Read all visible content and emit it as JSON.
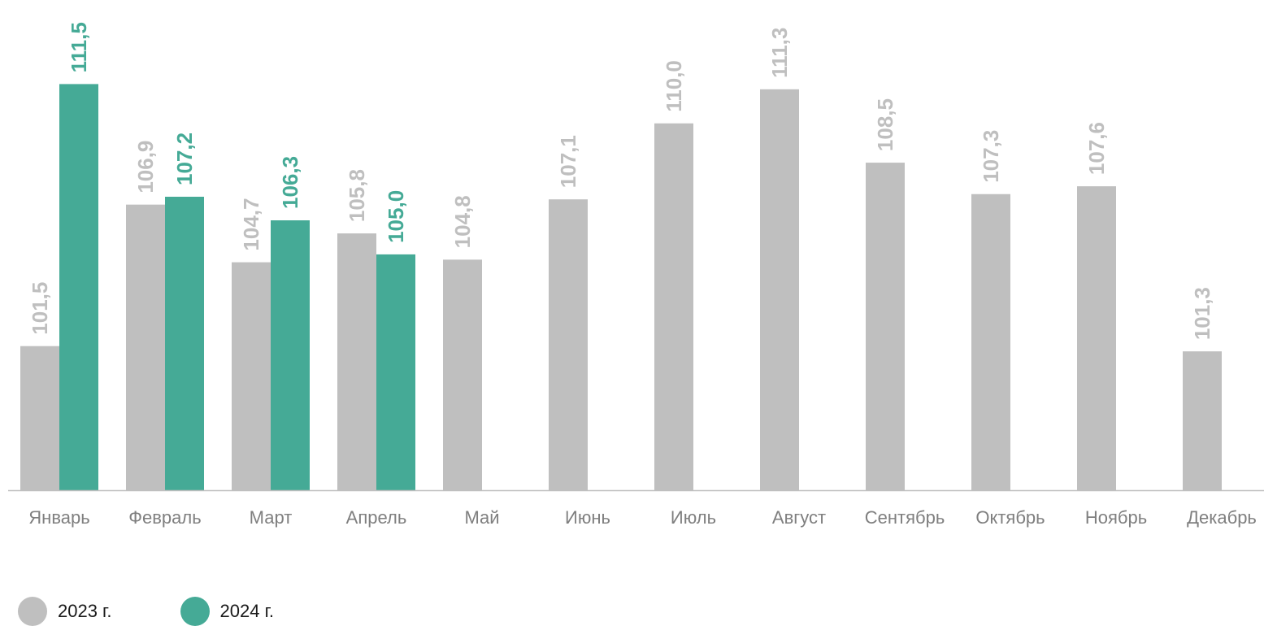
{
  "chart_data": {
    "type": "bar",
    "categories": [
      "Январь",
      "Февраль",
      "Март",
      "Апрель",
      "Май",
      "Июнь",
      "Июль",
      "Август",
      "Сентябрь",
      "Октябрь",
      "Ноябрь",
      "Декабрь"
    ],
    "series": [
      {
        "name": "2023 г.",
        "color": "#bfbfbf",
        "label_color": "#bfbfbf",
        "values": [
          101.5,
          106.9,
          104.7,
          105.8,
          104.8,
          107.1,
          110.0,
          111.3,
          108.5,
          107.3,
          107.6,
          101.3
        ],
        "labels": [
          "101,5",
          "106,9",
          "104,7",
          "105,8",
          "104,8",
          "107,1",
          "110,0",
          "111,3",
          "108,5",
          "107,3",
          "107,6",
          "101,3"
        ]
      },
      {
        "name": "2024 г.",
        "color": "#45aa96",
        "label_color": "#45aa96",
        "values": [
          111.5,
          107.2,
          106.3,
          105.0,
          null,
          null,
          null,
          null,
          null,
          null,
          null,
          null
        ],
        "labels": [
          "111,5",
          "107,2",
          "106,3",
          "105,0",
          null,
          null,
          null,
          null,
          null,
          null,
          null,
          null
        ]
      }
    ],
    "axis_color": "#bfbfbf",
    "ylim": [
      96,
      112
    ],
    "grid": false,
    "legend": "bottom-left",
    "value_label_orientation": "vertical"
  }
}
